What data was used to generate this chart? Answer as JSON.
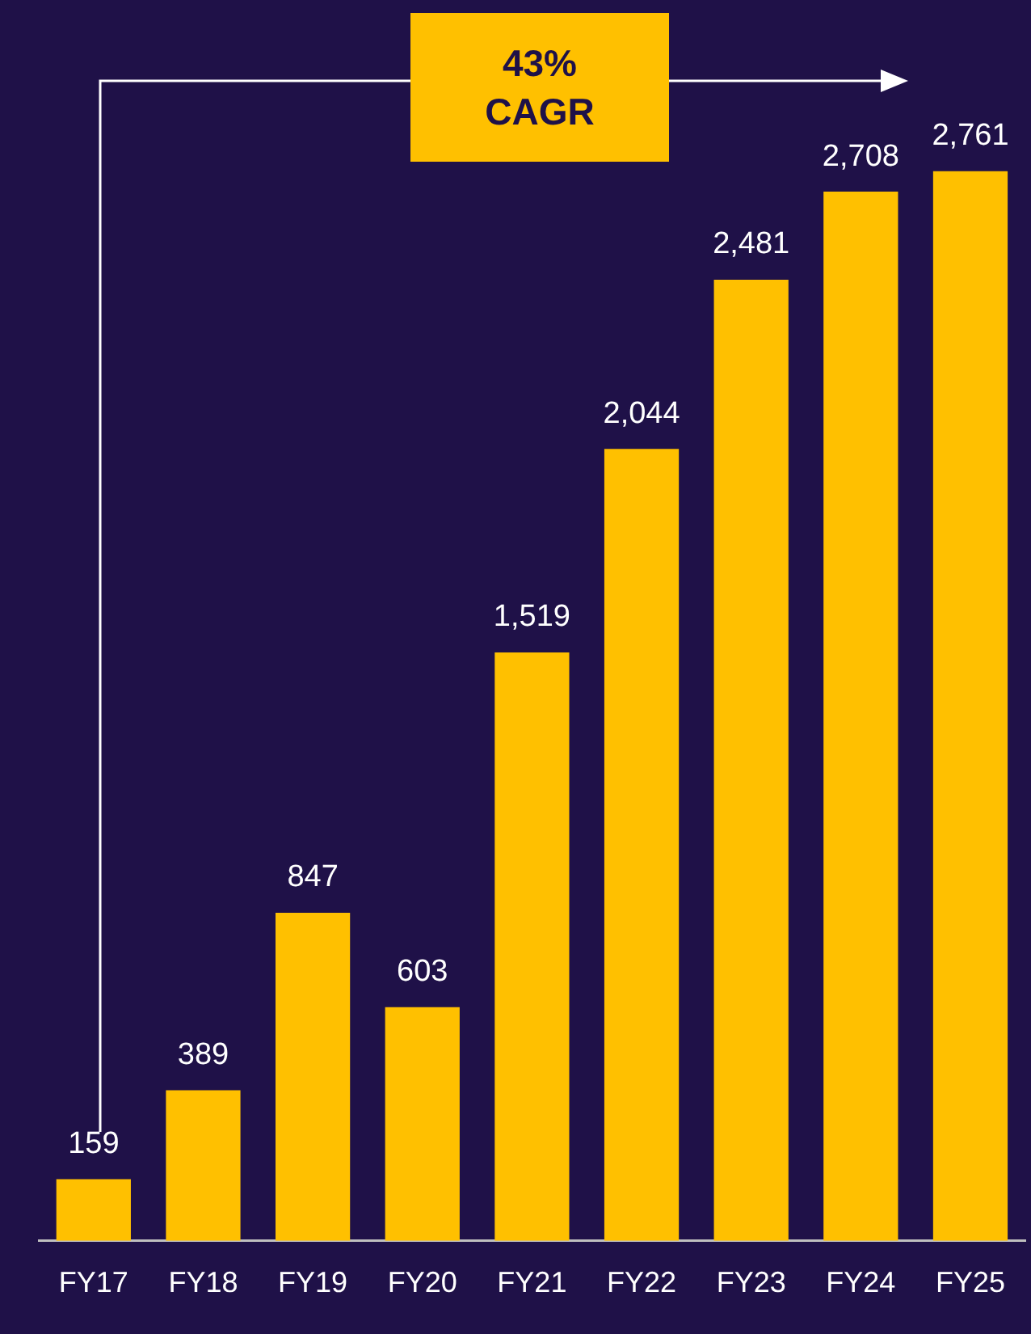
{
  "chart_data": {
    "type": "bar",
    "categories": [
      "FY17",
      "FY18",
      "FY19",
      "FY20",
      "FY21",
      "FY22",
      "FY23",
      "FY24",
      "FY25"
    ],
    "values": [
      159,
      389,
      847,
      603,
      1519,
      2044,
      2481,
      2708,
      2761
    ],
    "color": "#ffc000",
    "value_labels": [
      "159",
      "389",
      "847",
      "603",
      "1,519",
      "2,044",
      "2,481",
      "2,708",
      "2,761"
    ],
    "grid": false,
    "annotations": [
      "43% CAGR"
    ]
  }
}
